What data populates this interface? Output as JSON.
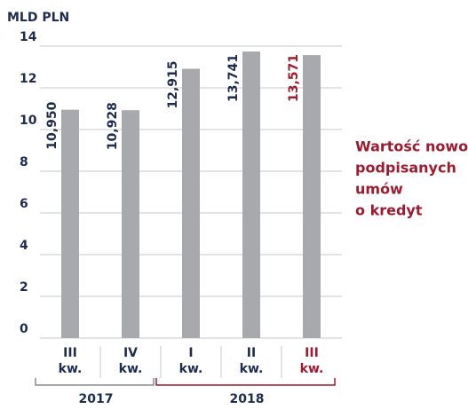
{
  "chart_data": {
    "type": "bar",
    "y_label": "MLD PLN",
    "categories": [
      "III kw.",
      "IV kw.",
      "I kw.",
      "II kw.",
      "III kw."
    ],
    "values": [
      10.95,
      10.928,
      12.915,
      13.741,
      13.571
    ],
    "value_labels": [
      "10,950",
      "10,928",
      "12,915",
      "13,741",
      "13,571"
    ],
    "color": "#a7a9ac",
    "highlight_color": "#9c1b2e",
    "highlight_index": 4,
    "groups": [
      {
        "label": "2017",
        "start": 0,
        "end": 1,
        "color": "#8a8c8f"
      },
      {
        "label": "2018",
        "start": 2,
        "end": 4,
        "color": "#9c1b2e"
      }
    ],
    "annotation": [
      "Wartość nowo",
      "podpisanych",
      "umów",
      "o kredyt"
    ],
    "ylim": [
      0,
      14
    ],
    "yticks": [
      0,
      2,
      4,
      6,
      8,
      10,
      12,
      14
    ],
    "grid": true
  }
}
